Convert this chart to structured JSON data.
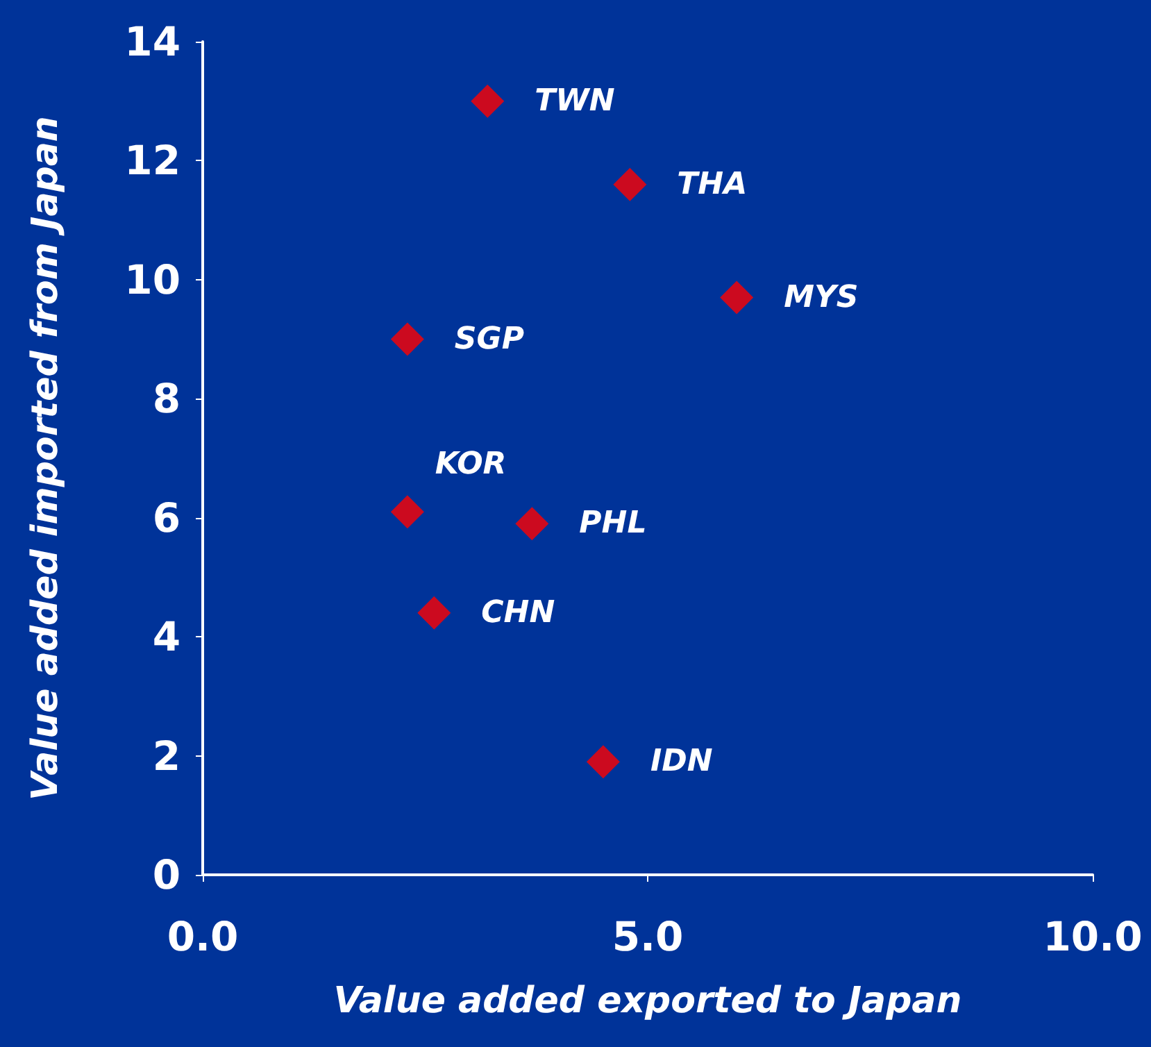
{
  "chart_data": {
    "type": "scatter",
    "xlabel": "Value added exported to Japan",
    "ylabel": "Value added imported from Japan",
    "series": [
      {
        "color": "#ff0000",
        "x": [
          3.2,
          4.8,
          6.0,
          2.3,
          2.3,
          3.7,
          2.6,
          4.5
        ],
        "values": [
          13.0,
          11.6,
          9.7,
          9.0,
          6.1,
          5.9,
          4.4,
          1.9
        ]
      }
    ],
    "annotations": [
      {
        "text": "TWN",
        "x": 3.2,
        "y": 13.0
      },
      {
        "text": "THA",
        "x": 4.8,
        "y": 11.6
      },
      {
        "text": "MYS",
        "x": 6.0,
        "y": 9.7
      },
      {
        "text": "SGP",
        "x": 2.3,
        "y": 9.0
      },
      {
        "text": "KOR",
        "x": 2.3,
        "y": 6.1
      },
      {
        "text": "PHL",
        "x": 3.7,
        "y": 5.9
      },
      {
        "text": "CHN",
        "x": 2.6,
        "y": 4.4
      },
      {
        "text": "IDN",
        "x": 4.5,
        "y": 1.9
      }
    ],
    "xlim": [
      0,
      10
    ],
    "xticks": [
      {
        "value": 0,
        "label": "0.0"
      },
      {
        "value": 5,
        "label": "5.0"
      },
      {
        "value": 10,
        "label": "10.0"
      }
    ],
    "ylim": [
      0,
      14
    ],
    "yticks": [
      0,
      2,
      4,
      6,
      8,
      10,
      12,
      14
    ],
    "marker": "diamond"
  }
}
